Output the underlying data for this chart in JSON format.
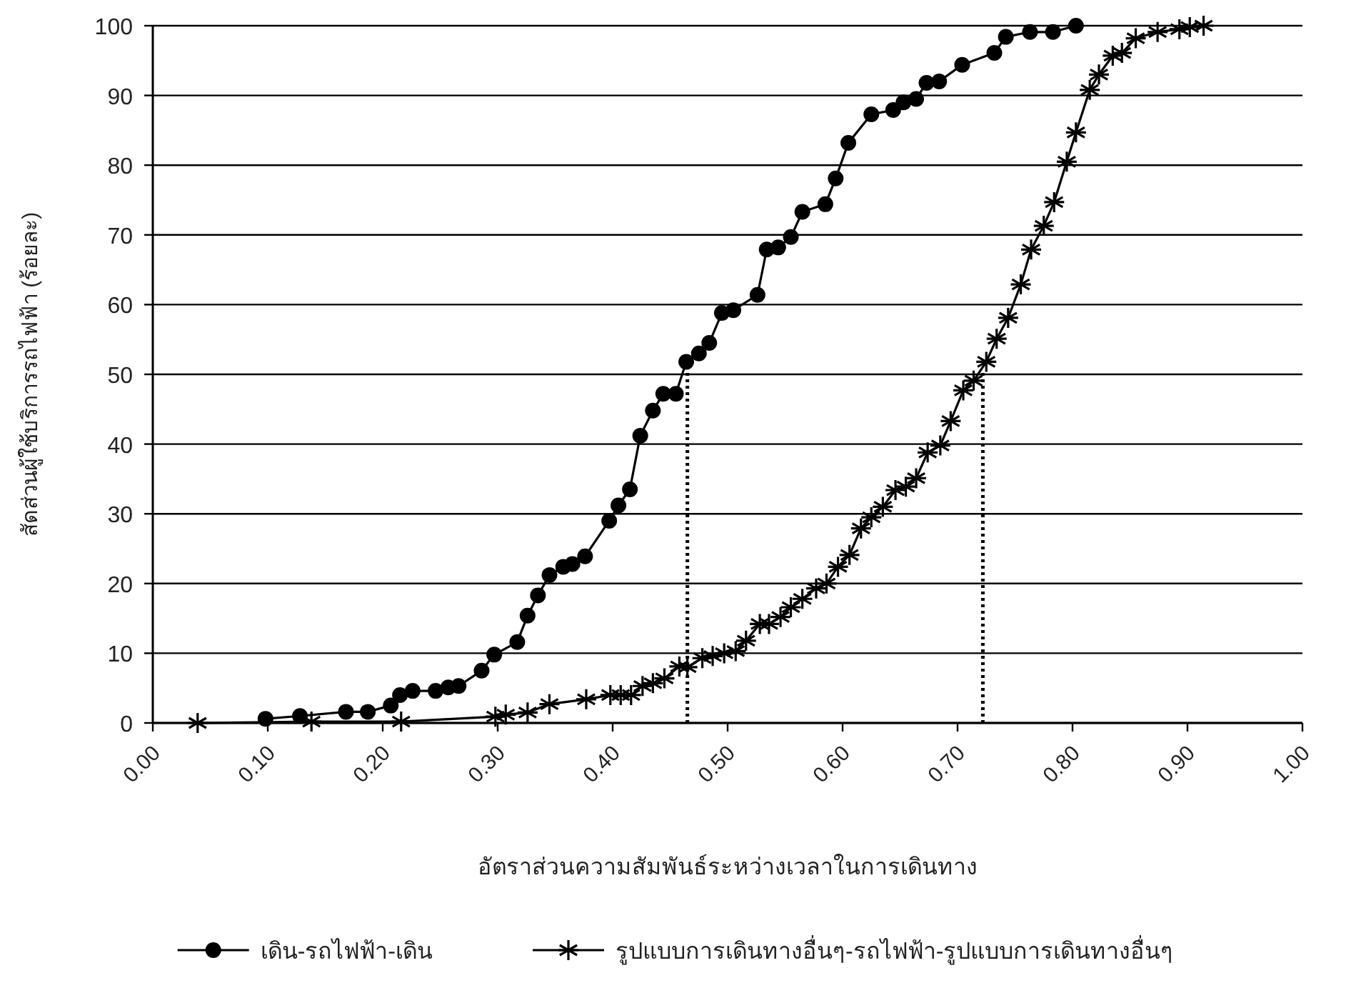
{
  "chart_data": {
    "type": "line",
    "xlabel": "อัตราส่วนความสัมพันธ์ระหว่างเวลาในการเดินทาง",
    "ylabel": "สัดส่วนผู้ใช้บริการรถไฟฟ้า (ร้อยละ)",
    "xlim": [
      0,
      1
    ],
    "ylim": [
      0,
      100
    ],
    "xticks": [
      {
        "value": 0,
        "label": "0.00"
      },
      {
        "value": 0.1,
        "label": "0.10"
      },
      {
        "value": 0.2,
        "label": "0.20"
      },
      {
        "value": 0.3,
        "label": "0.30"
      },
      {
        "value": 0.4,
        "label": "0.40"
      },
      {
        "value": 0.5,
        "label": "0.50"
      },
      {
        "value": 0.6,
        "label": "0.60"
      },
      {
        "value": 0.7,
        "label": "0.70"
      },
      {
        "value": 0.8,
        "label": "0.80"
      },
      {
        "value": 0.9,
        "label": "0.90"
      },
      {
        "value": 1,
        "label": "1.00"
      }
    ],
    "yticks": [
      0,
      10,
      20,
      30,
      40,
      50,
      60,
      70,
      80,
      90,
      100
    ],
    "grid": "y",
    "legend": "bottom",
    "series": [
      {
        "name": "เดิน-รถไฟฟ้า-เดิน",
        "color": "#000000",
        "marker": "circle",
        "line_style": "solid",
        "x": [
          0.098,
          0.128,
          0.168,
          0.187,
          0.207,
          0.215,
          0.226,
          0.246,
          0.257,
          0.266,
          0.286,
          0.297,
          0.317,
          0.326,
          0.335,
          0.345,
          0.357,
          0.365,
          0.376,
          0.397,
          0.405,
          0.415,
          0.424,
          0.435,
          0.444,
          0.455,
          0.464,
          0.475,
          0.484,
          0.495,
          0.505,
          0.526,
          0.534,
          0.544,
          0.555,
          0.565,
          0.585,
          0.594,
          0.605,
          0.625,
          0.644,
          0.653,
          0.664,
          0.673,
          0.684,
          0.704,
          0.732,
          0.742,
          0.763,
          0.783,
          0.803
        ],
        "values": [
          0.6,
          1.0,
          1.6,
          1.6,
          2.5,
          4.0,
          4.6,
          4.6,
          5.1,
          5.3,
          7.5,
          9.8,
          11.6,
          15.4,
          18.3,
          21.2,
          22.4,
          22.8,
          23.9,
          29.0,
          31.2,
          33.5,
          41.2,
          44.8,
          47.2,
          47.2,
          51.8,
          53.0,
          54.5,
          58.8,
          59.2,
          61.4,
          67.9,
          68.2,
          69.7,
          73.3,
          74.4,
          78.1,
          83.2,
          87.3,
          87.9,
          89.0,
          89.5,
          91.8,
          92.0,
          94.4,
          96.1,
          98.4,
          99.1,
          99.1,
          100
        ]
      },
      {
        "name": "รูปแบบการเดินทางอื่นๆ-รถไฟฟ้า-รูปแบบการเดินทางอื่นๆ",
        "color": "#000000",
        "marker": "cross",
        "line_style": "solid",
        "x": [
          0.039,
          0.138,
          0.216,
          0.298,
          0.307,
          0.326,
          0.345,
          0.377,
          0.398,
          0.407,
          0.416,
          0.426,
          0.435,
          0.445,
          0.458,
          0.465,
          0.478,
          0.487,
          0.497,
          0.507,
          0.516,
          0.528,
          0.536,
          0.546,
          0.555,
          0.565,
          0.577,
          0.586,
          0.596,
          0.606,
          0.616,
          0.625,
          0.635,
          0.646,
          0.655,
          0.664,
          0.674,
          0.685,
          0.694,
          0.705,
          0.714,
          0.725,
          0.734,
          0.744,
          0.755,
          0.764,
          0.775,
          0.784,
          0.795,
          0.803,
          0.815,
          0.823,
          0.835,
          0.843,
          0.855,
          0.874,
          0.893,
          0.902,
          0.914
        ],
        "values": [
          0,
          0.2,
          0.2,
          0.9,
          1.2,
          1.5,
          2.7,
          3.4,
          4.0,
          4.0,
          4.0,
          5.3,
          5.7,
          6.4,
          8.1,
          8.0,
          9.3,
          9.6,
          10.0,
          10.3,
          11.8,
          14.2,
          14.2,
          15.2,
          16.6,
          17.8,
          19.3,
          20.0,
          22.4,
          24.1,
          27.9,
          29.5,
          31.0,
          33.4,
          33.9,
          35.1,
          38.8,
          39.8,
          43.3,
          47.7,
          49.1,
          51.8,
          55.1,
          58.1,
          62.9,
          67.9,
          71.3,
          74.7,
          80.5,
          84.7,
          90.8,
          93.0,
          95.7,
          96.1,
          98.2,
          99.1,
          99.5,
          99.8,
          100
        ]
      },
      {
        "type": "line",
        "color": "#000000",
        "marker": "none",
        "line_style": "dotted",
        "x": [
          0.465,
          0.465
        ],
        "values": [
          0,
          51.8
        ]
      },
      {
        "type": "line",
        "color": "#000000",
        "marker": "none",
        "line_style": "dotted",
        "x": [
          0.722,
          0.722
        ],
        "values": [
          0,
          50.5
        ]
      }
    ]
  }
}
